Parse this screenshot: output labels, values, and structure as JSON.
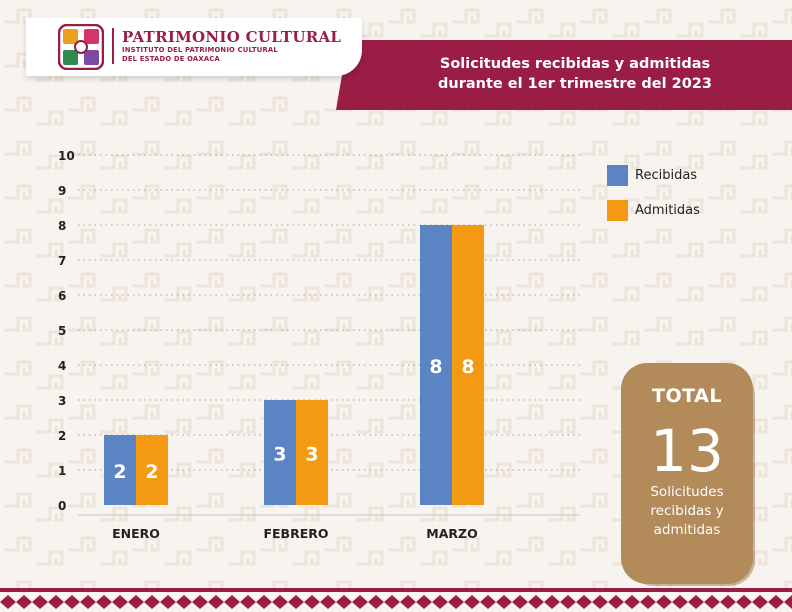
{
  "header": {
    "org_name": "PATRIMONIO CULTURAL",
    "org_sub_line1": "INSTITUTO DEL PATRIMONIO CULTURAL",
    "org_sub_line2": "DEL ESTADO DE OAXACA",
    "title_line1": "Solicitudes recibidas y admitidas",
    "title_line2": "durante el 1er trimestre del 2023"
  },
  "colors": {
    "brand": "#9a1d45",
    "recibidas": "#5b84c4",
    "admitidas": "#f39a12",
    "total_box": "#b38a5a",
    "background": "#f7f3ee"
  },
  "chart_data": {
    "type": "bar",
    "categories": [
      "ENERO",
      "FEBRERO",
      "MARZO"
    ],
    "series": [
      {
        "name": "Recibidas",
        "values": [
          2,
          3,
          8
        ]
      },
      {
        "name": "Admitidas",
        "values": [
          2,
          3,
          8
        ]
      }
    ],
    "ylim": [
      0,
      10
    ],
    "yticks": [
      0,
      1,
      2,
      3,
      4,
      5,
      6,
      7,
      8,
      9,
      10
    ],
    "grid": true,
    "legend": "top-right",
    "data_labels": true
  },
  "total": {
    "label": "TOTAL",
    "value": "13",
    "description": "Solicitudes recibidas y admitidas"
  }
}
